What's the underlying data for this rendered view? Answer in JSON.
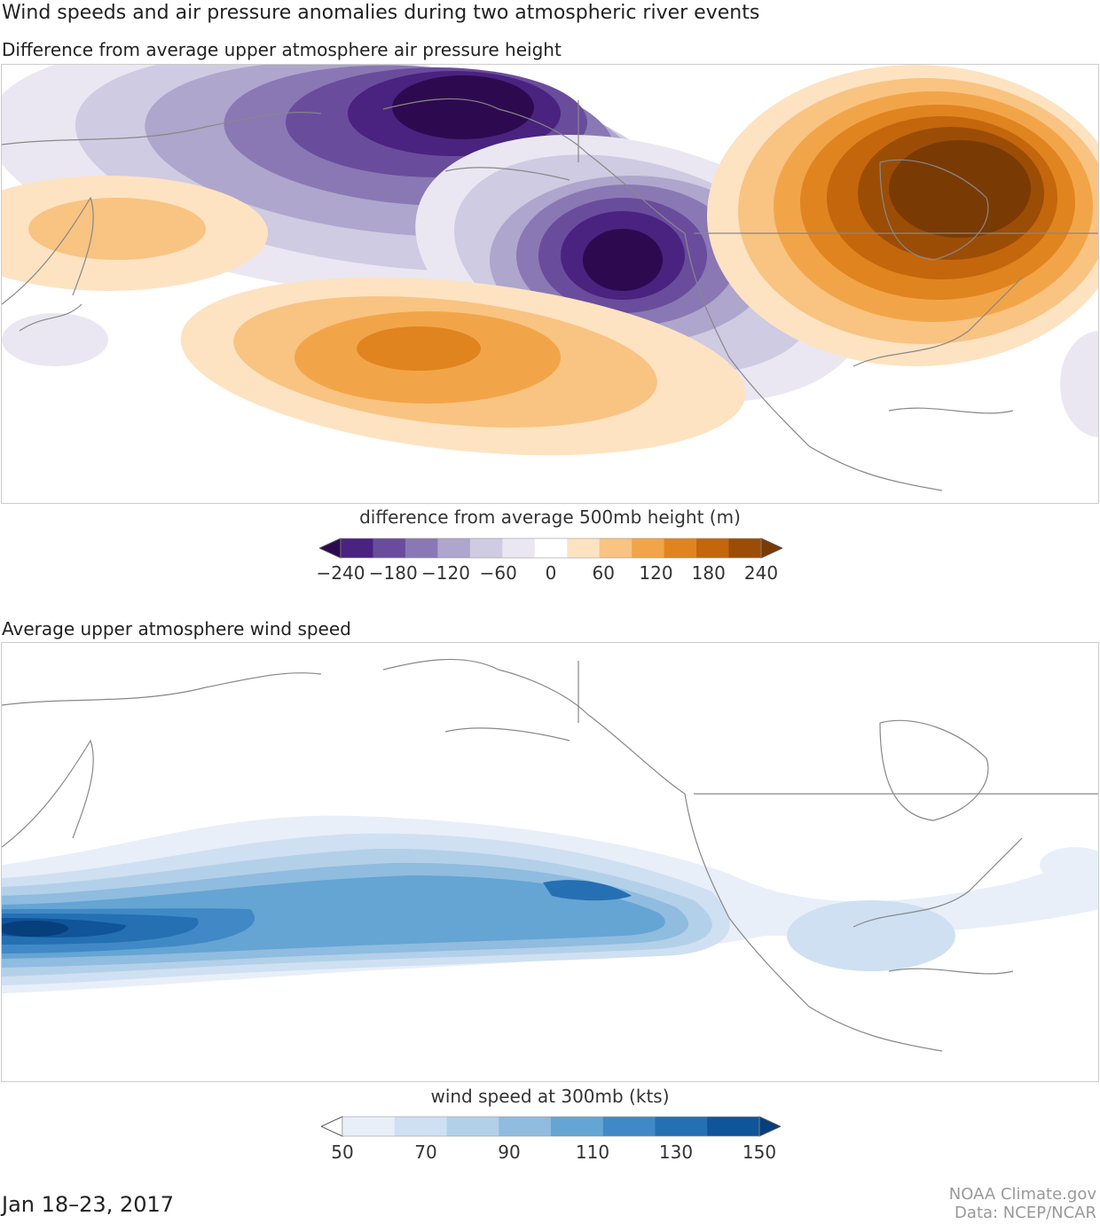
{
  "title": "Wind speeds and air pressure anomalies during two atmospheric river events",
  "top_panel": {
    "subtitle": "Difference from average upper atmosphere air pressure height",
    "legend_title": "difference from average 500mb height (m)",
    "ticks": [
      "−240",
      "−180",
      "−120",
      "−60",
      "0",
      "60",
      "120",
      "180",
      "240"
    ],
    "colors": [
      "#2d0a4f",
      "#4a2280",
      "#6a4c9c",
      "#8a78b4",
      "#aea6cc",
      "#cfcbe2",
      "#eae7f2",
      "#ffffff",
      "#fde3c2",
      "#f9c382",
      "#f2a548",
      "#e0841f",
      "#c4660c",
      "#9b4d06",
      "#7a3a03"
    ]
  },
  "bottom_panel": {
    "subtitle": "Average upper atmosphere wind speed",
    "legend_title": "wind speed at 300mb (kts)",
    "ticks": [
      "50",
      "70",
      "90",
      "110",
      "130",
      "150"
    ],
    "colors": [
      "#ffffff",
      "#e8eff9",
      "#cfe0f2",
      "#b3d0e9",
      "#8fbcdf",
      "#65a5d3",
      "#4089c6",
      "#2470b3",
      "#10549a",
      "#063f7c"
    ]
  },
  "date": "Jan 18–23, 2017",
  "credit": {
    "source": "NOAA Climate.gov",
    "data": "Data: NCEP/NCAR"
  }
}
